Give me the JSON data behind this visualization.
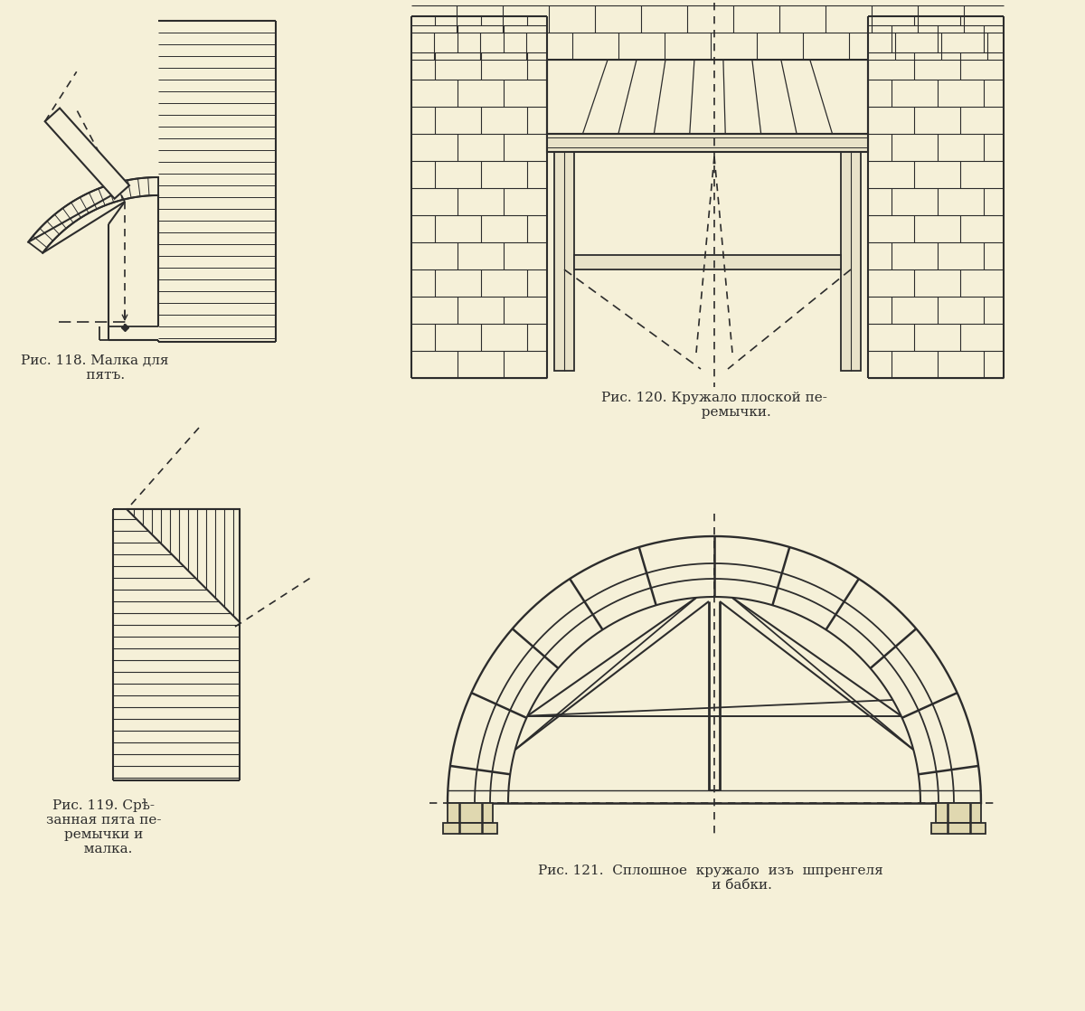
{
  "background_color": "#f5f0d8",
  "line_color": "#2c2c2c",
  "title1": "Рис. 118. Малка для\n     пятъ.",
  "title2": "Рис. 120. Кружало плоской пе-\n          ремычки.",
  "title3": "Рис. 119. Срѣ-\nзанная пята пе-\nремычки и\n  малка.",
  "title4": "Рис. 121.  Сплошное  кружало  изъ  шпренгеля\n              и бабки."
}
